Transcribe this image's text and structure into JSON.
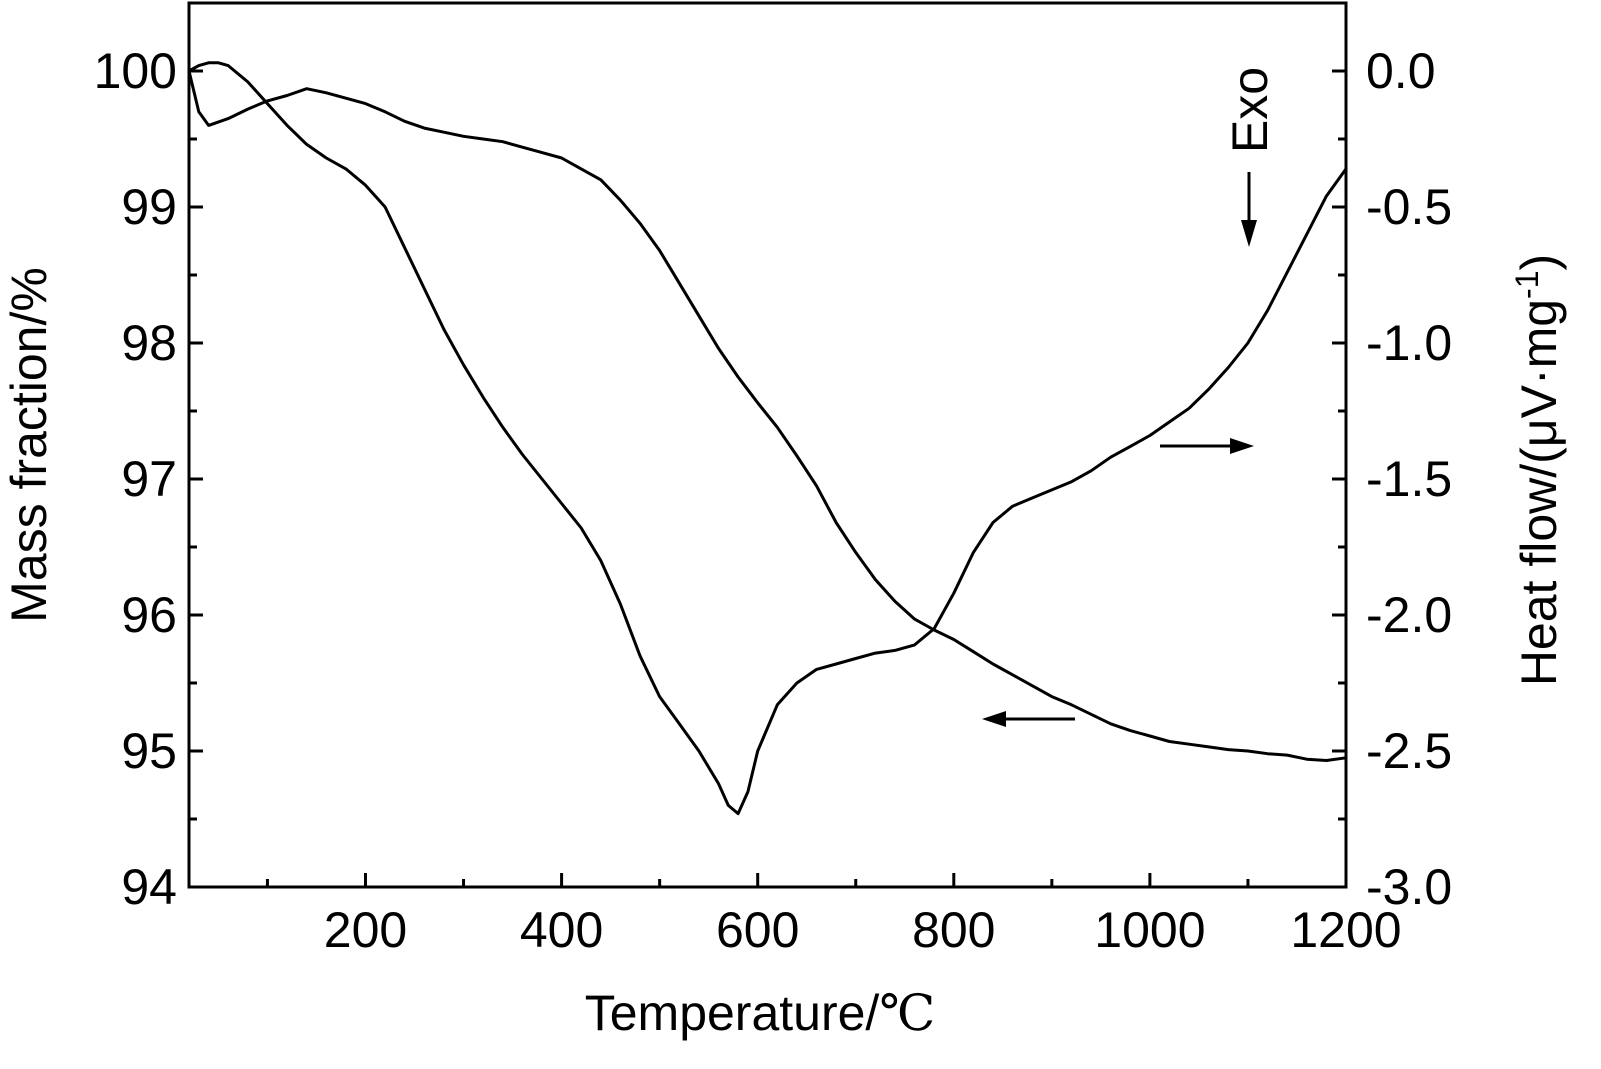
{
  "chart_data": {
    "type": "line",
    "title": "",
    "xlabel": "Temperature/",
    "xlabel_unit": "℃",
    "ylabel_left": "Mass fraction/%",
    "ylabel_right": "Heat flow/(μV·mg",
    "ylabel_right_sup": "-1",
    "ylabel_right_close": ")",
    "xlim": [
      20,
      1200
    ],
    "ylim_left": [
      94,
      100.5
    ],
    "ylim_right": [
      -3.0,
      0.25
    ],
    "x_ticks": [
      "200",
      "400",
      "600",
      "800",
      "1000",
      "1200"
    ],
    "x_tick_values": [
      200,
      400,
      600,
      800,
      1000,
      1200
    ],
    "y_left_ticks": [
      "94",
      "95",
      "96",
      "97",
      "98",
      "99",
      "100"
    ],
    "y_left_tick_values": [
      94,
      95,
      96,
      97,
      98,
      99,
      100
    ],
    "y_right_ticks": [
      "-3.0",
      "-2.5",
      "-2.0",
      "-1.5",
      "-1.0",
      "-0.5",
      "0.0"
    ],
    "y_right_tick_values": [
      -3.0,
      -2.5,
      -2.0,
      -1.5,
      -1.0,
      -0.5,
      0.0
    ],
    "series": [
      {
        "name": "Mass fraction (TG)",
        "axis": "left",
        "x": [
          20,
          25,
          30,
          40,
          60,
          80,
          100,
          120,
          140,
          160,
          180,
          200,
          220,
          240,
          260,
          280,
          300,
          320,
          340,
          360,
          380,
          400,
          420,
          440,
          460,
          480,
          500,
          520,
          540,
          560,
          580,
          600,
          620,
          640,
          660,
          680,
          700,
          720,
          740,
          760,
          780,
          800,
          820,
          840,
          860,
          880,
          900,
          920,
          940,
          960,
          980,
          1000,
          1020,
          1040,
          1060,
          1080,
          1100,
          1120,
          1140,
          1160,
          1180,
          1200
        ],
        "values": [
          100.0,
          99.85,
          99.7,
          99.6,
          99.65,
          99.72,
          99.78,
          99.82,
          99.87,
          99.84,
          99.8,
          99.76,
          99.7,
          99.63,
          99.58,
          99.55,
          99.52,
          99.5,
          99.48,
          99.44,
          99.4,
          99.36,
          99.28,
          99.2,
          99.05,
          98.88,
          98.68,
          98.44,
          98.2,
          97.96,
          97.75,
          97.56,
          97.38,
          97.17,
          96.95,
          96.68,
          96.46,
          96.26,
          96.1,
          95.97,
          95.89,
          95.82,
          95.73,
          95.64,
          95.56,
          95.48,
          95.4,
          95.34,
          95.27,
          95.2,
          95.15,
          95.11,
          95.07,
          95.05,
          95.03,
          95.01,
          95.0,
          94.98,
          94.97,
          94.94,
          94.93,
          94.95
        ]
      },
      {
        "name": "Heat flow (DSC)",
        "axis": "right",
        "x": [
          20,
          30,
          40,
          50,
          60,
          80,
          100,
          120,
          140,
          160,
          180,
          200,
          220,
          240,
          260,
          280,
          300,
          320,
          340,
          360,
          380,
          400,
          420,
          440,
          460,
          480,
          500,
          520,
          540,
          560,
          570,
          580,
          590,
          600,
          620,
          640,
          660,
          680,
          700,
          720,
          740,
          760,
          780,
          800,
          820,
          840,
          860,
          880,
          900,
          920,
          940,
          960,
          980,
          1000,
          1020,
          1040,
          1060,
          1080,
          1100,
          1120,
          1140,
          1160,
          1180,
          1200
        ],
        "values": [
          0.0,
          0.02,
          0.03,
          0.03,
          0.02,
          -0.04,
          -0.12,
          -0.2,
          -0.27,
          -0.32,
          -0.36,
          -0.42,
          -0.5,
          -0.65,
          -0.8,
          -0.95,
          -1.08,
          -1.2,
          -1.31,
          -1.41,
          -1.5,
          -1.59,
          -1.68,
          -1.8,
          -1.96,
          -2.15,
          -2.3,
          -2.4,
          -2.5,
          -2.62,
          -2.7,
          -2.73,
          -2.65,
          -2.5,
          -2.33,
          -2.25,
          -2.2,
          -2.18,
          -2.16,
          -2.14,
          -2.13,
          -2.11,
          -2.05,
          -1.92,
          -1.77,
          -1.66,
          -1.6,
          -1.57,
          -1.54,
          -1.51,
          -1.47,
          -1.42,
          -1.38,
          -1.34,
          -1.29,
          -1.24,
          -1.17,
          -1.09,
          -1.0,
          -0.88,
          -0.74,
          -0.6,
          -0.46,
          -0.36
        ]
      }
    ],
    "annotations": [
      {
        "text": "Exo",
        "arrow": "down",
        "meaning": "exothermic direction"
      },
      {
        "text": "",
        "arrow": "left",
        "meaning": "TG curve reads left axis"
      },
      {
        "text": "",
        "arrow": "right",
        "meaning": "DSC curve reads right axis"
      }
    ],
    "grid": false,
    "legend": "none"
  }
}
